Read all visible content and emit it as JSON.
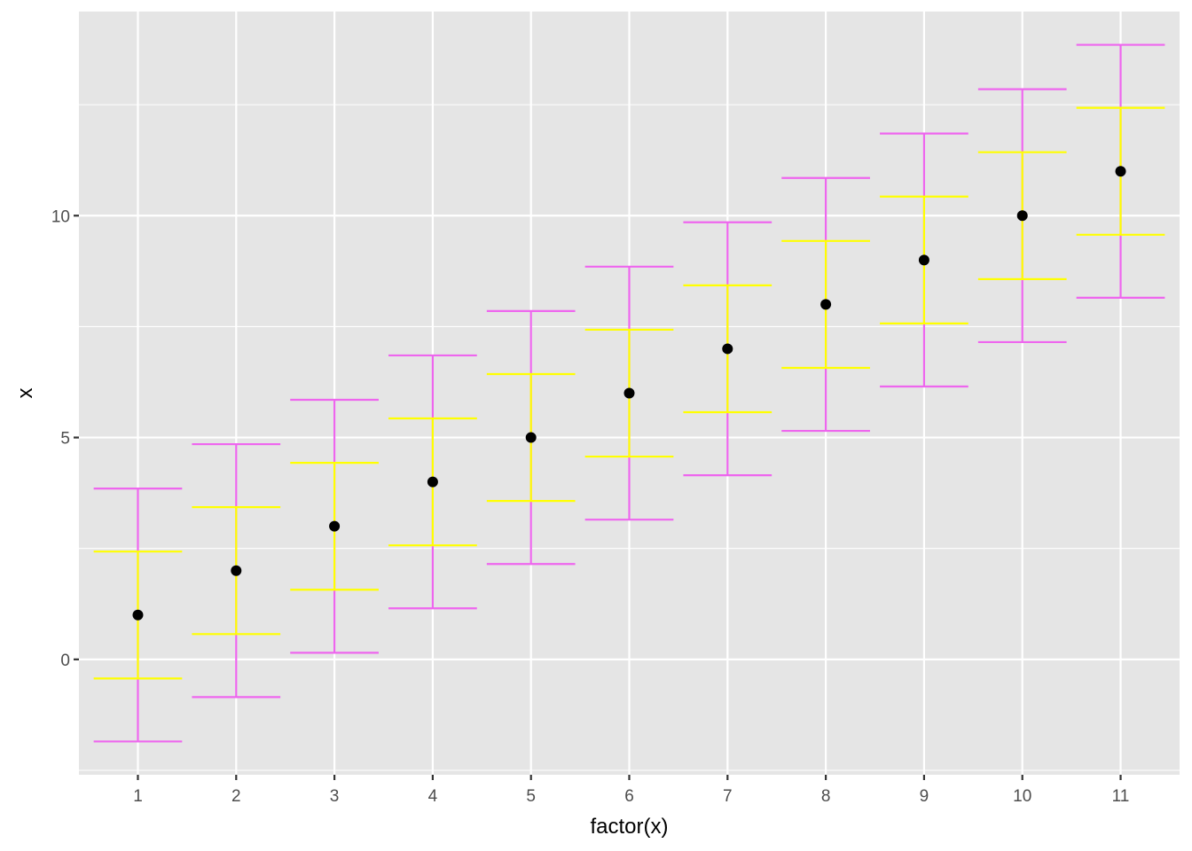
{
  "chart_data": {
    "type": "errorbar",
    "xlabel": "factor(x)",
    "ylabel": "x",
    "categories": [
      "1",
      "2",
      "3",
      "4",
      "5",
      "6",
      "7",
      "8",
      "9",
      "10",
      "11"
    ],
    "y_ticks": [
      0,
      5,
      10
    ],
    "ylim": [
      -2.6,
      14.6
    ],
    "grid": true,
    "panel_color": "#e5e5e5",
    "grid_color": "#ffffff",
    "points": {
      "name": "",
      "color": "#000000",
      "values": [
        1,
        2,
        3,
        4,
        5,
        6,
        7,
        8,
        9,
        10,
        11
      ]
    },
    "error_bars": [
      {
        "name": "",
        "color": "#ffff00",
        "lower": [
          -0.43,
          0.57,
          1.57,
          2.57,
          3.57,
          4.57,
          5.57,
          6.57,
          7.57,
          8.57,
          9.57
        ],
        "upper": [
          2.43,
          3.43,
          4.43,
          5.43,
          6.43,
          7.43,
          8.43,
          9.43,
          10.43,
          11.43,
          12.43
        ]
      },
      {
        "name": "",
        "color": "#ee66ee",
        "lower": [
          -1.85,
          -0.85,
          0.15,
          1.15,
          2.15,
          3.15,
          4.15,
          5.15,
          6.15,
          7.15,
          8.15
        ],
        "upper": [
          3.85,
          4.85,
          5.85,
          6.85,
          7.85,
          8.85,
          9.85,
          10.85,
          11.85,
          12.85,
          13.85
        ]
      }
    ]
  }
}
